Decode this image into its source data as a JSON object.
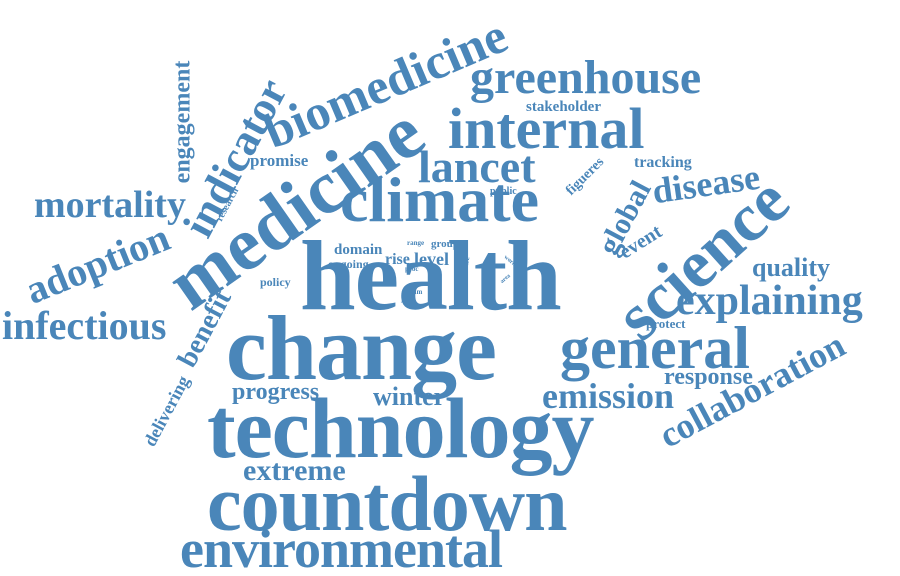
{
  "word_color": "#4a86b9",
  "background": "#ffffff",
  "words": [
    {
      "text": "health"
    },
    {
      "text": "change"
    },
    {
      "text": "technology"
    },
    {
      "text": "countdown"
    },
    {
      "text": "environmental"
    },
    {
      "text": "medicine"
    },
    {
      "text": "climate"
    },
    {
      "text": "biomedicine"
    },
    {
      "text": "internal"
    },
    {
      "text": "greenhouse"
    },
    {
      "text": "science"
    },
    {
      "text": "general"
    },
    {
      "text": "lancet"
    },
    {
      "text": "explaining"
    },
    {
      "text": "collaboration"
    },
    {
      "text": "emission"
    },
    {
      "text": "extreme"
    },
    {
      "text": "infectious"
    },
    {
      "text": "mortality"
    },
    {
      "text": "adoption"
    },
    {
      "text": "indicator"
    },
    {
      "text": "engagement"
    },
    {
      "text": "disease"
    },
    {
      "text": "global"
    },
    {
      "text": "benefit"
    },
    {
      "text": "quality"
    },
    {
      "text": "response"
    },
    {
      "text": "progress"
    },
    {
      "text": "winter"
    },
    {
      "text": "delivering"
    },
    {
      "text": "promise"
    },
    {
      "text": "tracking"
    },
    {
      "text": "stakeholder"
    },
    {
      "text": "event"
    },
    {
      "text": "figueres"
    },
    {
      "text": "protect"
    },
    {
      "text": "research"
    },
    {
      "text": "policy"
    },
    {
      "text": "domain"
    },
    {
      "text": "group"
    },
    {
      "text": "ongoing"
    },
    {
      "text": "rise"
    },
    {
      "text": "level"
    },
    {
      "text": "public"
    },
    {
      "text": "range"
    },
    {
      "text": "proc"
    },
    {
      "text": "life"
    },
    {
      "text": "work"
    },
    {
      "text": "area"
    },
    {
      "text": "aim"
    },
    {
      "text": "join"
    }
  ]
}
